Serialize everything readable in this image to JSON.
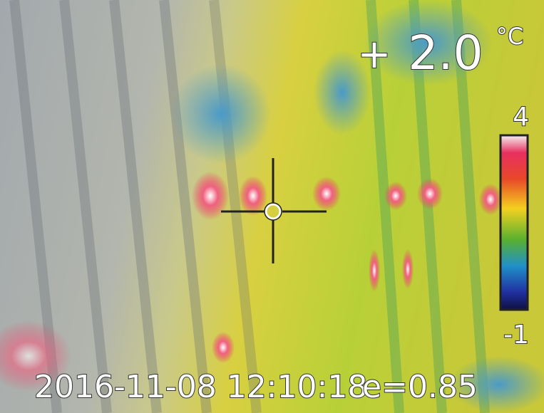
{
  "overlay": {
    "spot_marker": "+",
    "spot_temperature": "2.0",
    "unit": "°C",
    "scale_max": "4",
    "scale_min": "-1",
    "timestamp": "2016-11-08 12:10:18",
    "emissivity": "e=0.85"
  }
}
